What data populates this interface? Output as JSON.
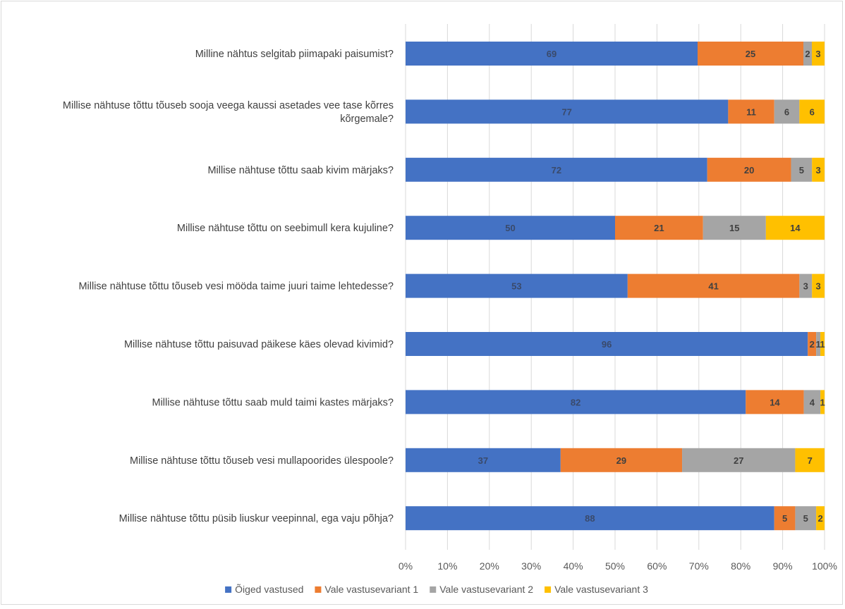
{
  "chart_data": {
    "type": "bar",
    "orientation": "horizontal",
    "stacked": "percent",
    "categories": [
      "Milline nähtus selgitab piimapaki paisumist?",
      "Millise nähtuse tõttu tõuseb sooja veega kaussi asetades vee tase kõrres kõrgemale?",
      "Millise nähtuse tõttu saab kivim märjaks?",
      "Millise nähtuse tõttu on seebimull kera kujuline?",
      "Millise nähtuse tõttu tõuseb vesi mööda taime juuri taime lehtedesse?",
      "Millise nähtuse tõttu paisuvad päikese käes olevad kivimid?",
      "Millise nähtuse tõttu saab muld taimi kastes märjaks?",
      "Millise nähtuse tõttu tõuseb vesi mullapoorides ülespoole?",
      "Millise nähtuse tõttu püsib liuskur veepinnal, ega vaju põhja?"
    ],
    "series": [
      {
        "name": "Õiged vastused",
        "color": "#4472c4",
        "label_color": "#3a4a6b",
        "values": [
          69,
          77,
          72,
          50,
          53,
          96,
          82,
          37,
          88
        ]
      },
      {
        "name": "Vale vastusevariant 1",
        "color": "#ed7d31",
        "label_color": "#404040",
        "values": [
          25,
          11,
          20,
          21,
          41,
          2,
          14,
          29,
          5
        ]
      },
      {
        "name": "Vale vastusevariant 2",
        "color": "#a5a5a5",
        "label_color": "#404040",
        "values": [
          2,
          6,
          5,
          15,
          3,
          1,
          4,
          27,
          5
        ]
      },
      {
        "name": "Vale vastusevariant 3",
        "color": "#ffc000",
        "label_color": "#404040",
        "values": [
          3,
          6,
          3,
          14,
          3,
          1,
          1,
          7,
          2
        ]
      }
    ],
    "xlim": [
      0,
      100
    ],
    "x_ticks": [
      "0%",
      "10%",
      "20%",
      "30%",
      "40%",
      "50%",
      "60%",
      "70%",
      "80%",
      "90%",
      "100%"
    ],
    "grid": true,
    "legend_position": "bottom",
    "data_labels": true,
    "title": "",
    "xlabel": "",
    "ylabel": ""
  }
}
